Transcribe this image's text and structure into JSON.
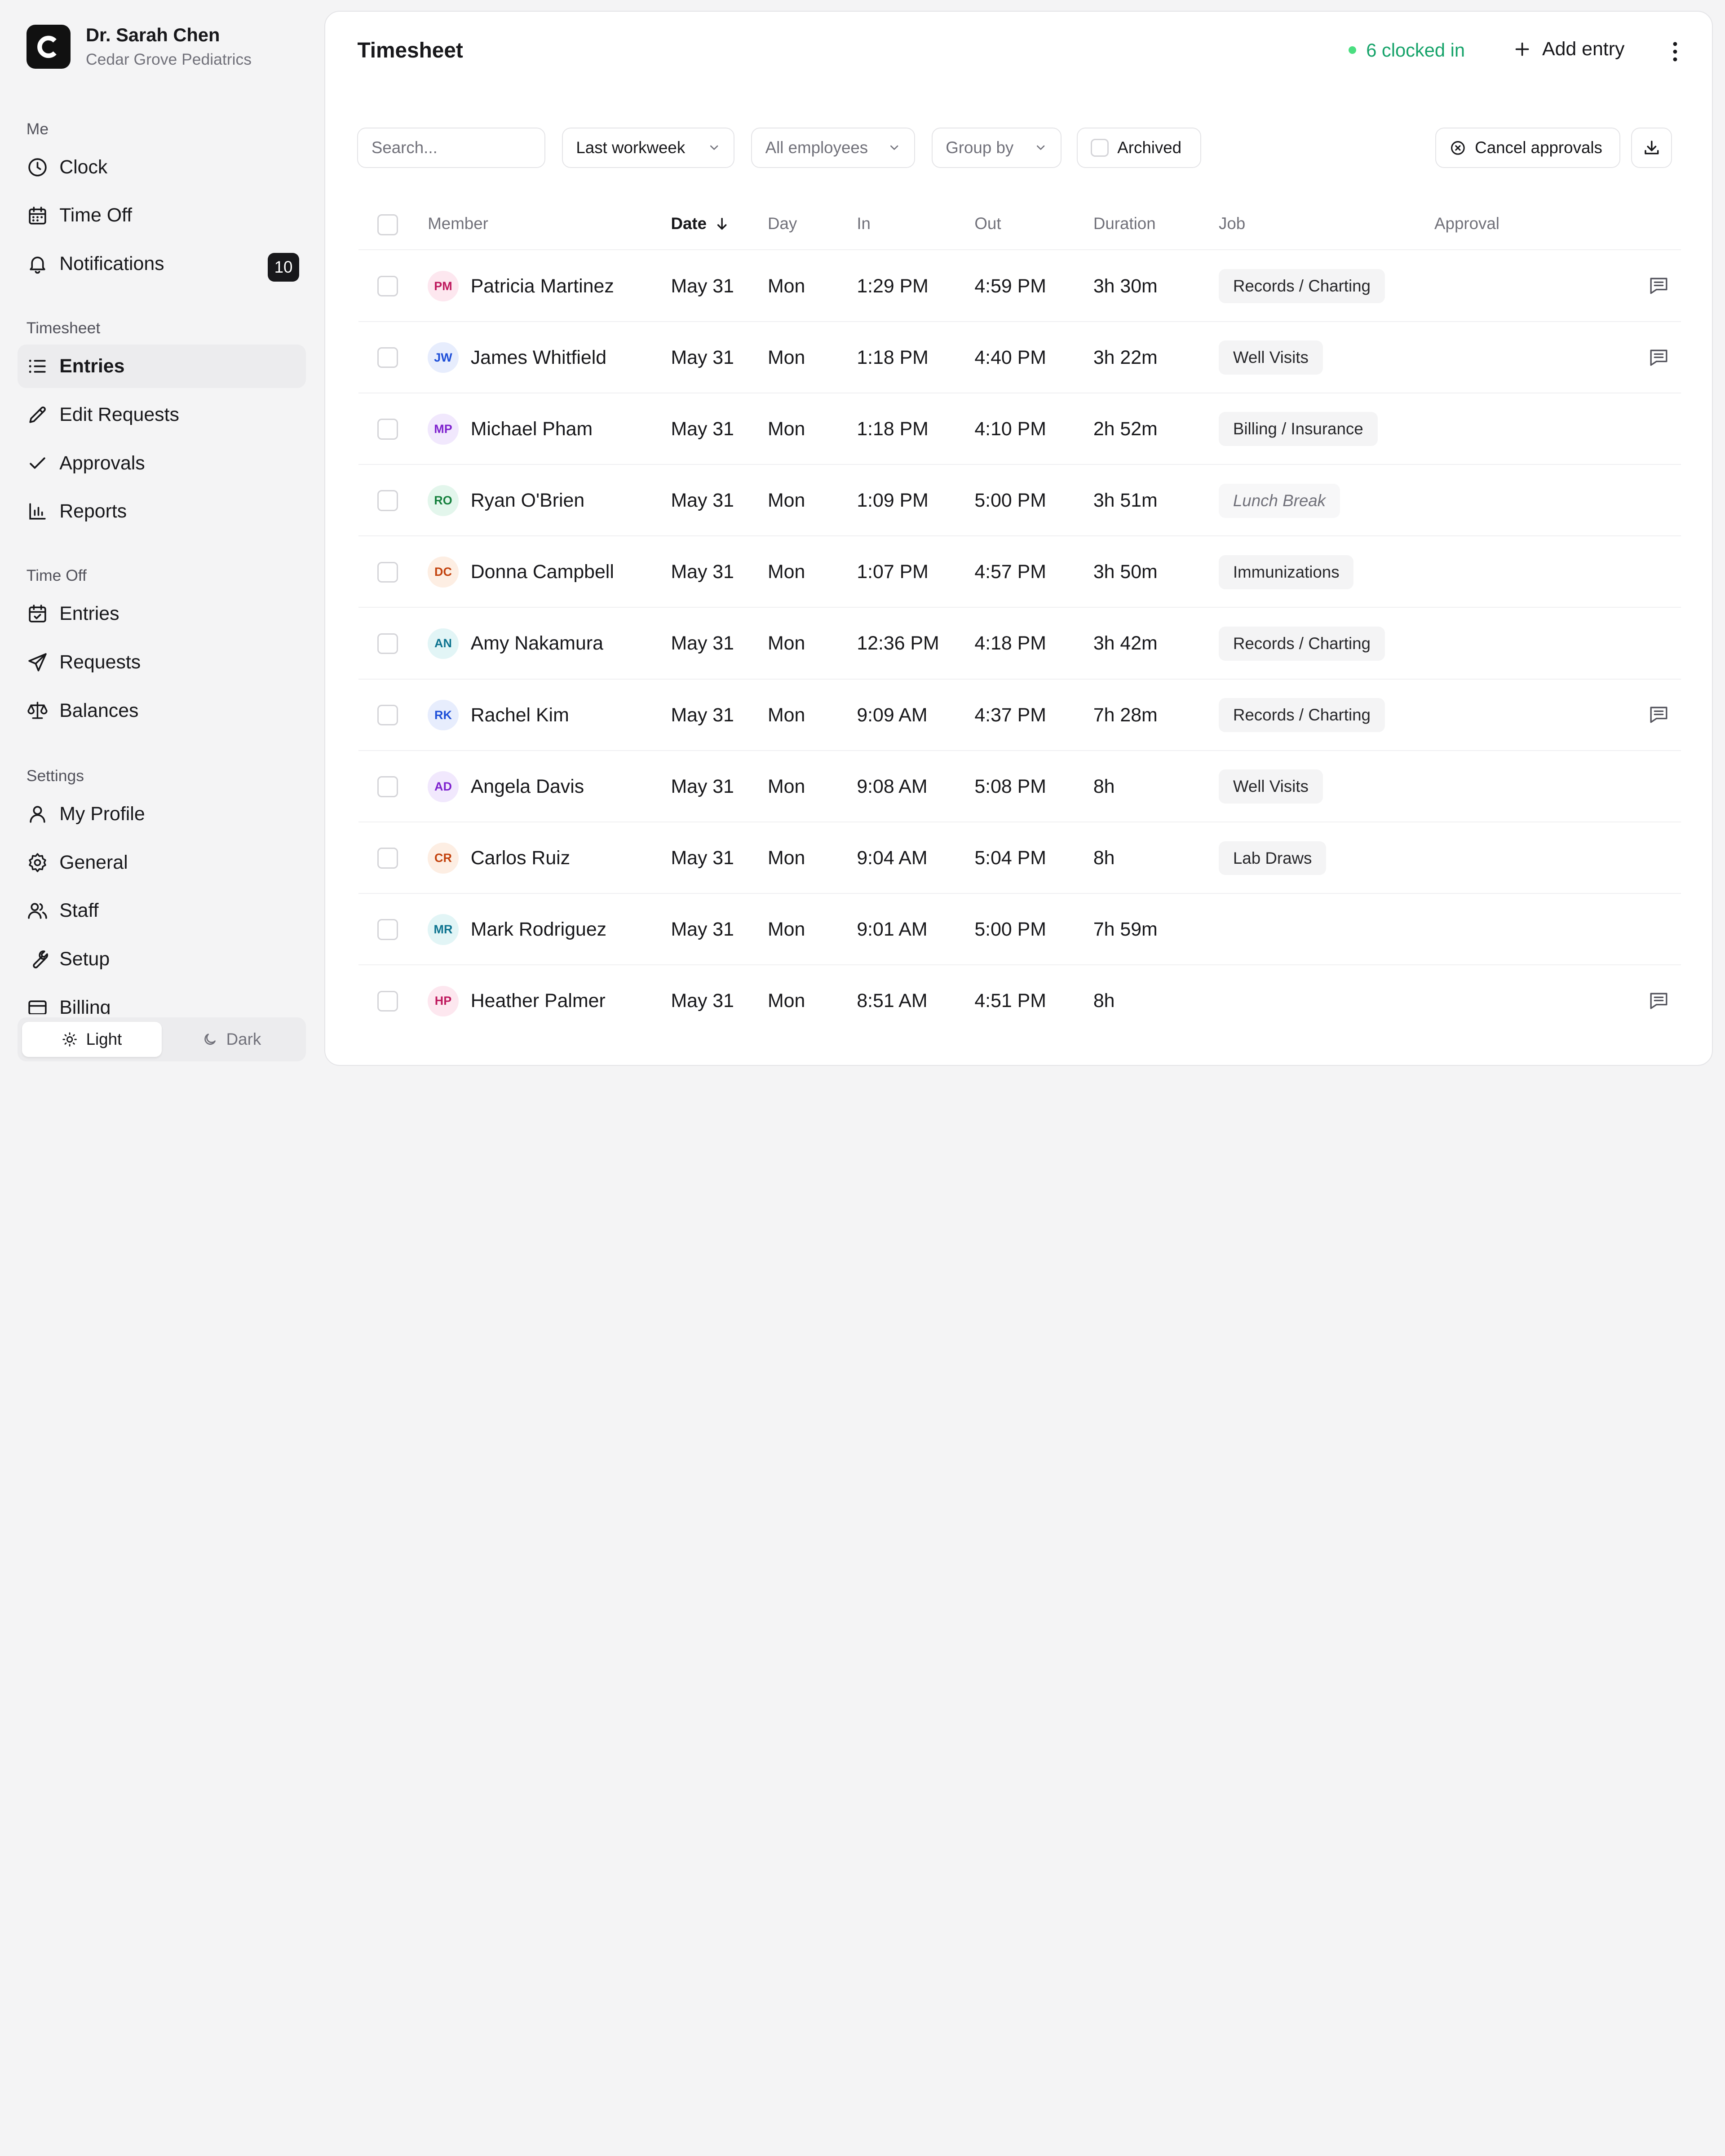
{
  "org": {
    "logo_letter": "C",
    "name": "Dr. Sarah Chen",
    "subtitle": "Cedar Grove Pediatrics"
  },
  "sidebar": {
    "sections": {
      "me": "Me",
      "timesheet": "Timesheet",
      "time_off": "Time Off",
      "settings": "Settings"
    },
    "me_items": [
      {
        "label": "Clock",
        "icon": "clock-icon"
      },
      {
        "label": "Time Off",
        "icon": "calendar-icon"
      },
      {
        "label": "Notifications",
        "icon": "bell-icon",
        "badge": "10"
      }
    ],
    "timesheet_items": [
      {
        "label": "Entries",
        "icon": "list-icon",
        "active": true
      },
      {
        "label": "Edit Requests",
        "icon": "pencil-icon"
      },
      {
        "label": "Approvals",
        "icon": "check-icon"
      },
      {
        "label": "Reports",
        "icon": "bar-chart-icon"
      }
    ],
    "time_off_items": [
      {
        "label": "Entries",
        "icon": "calendar-check-icon"
      },
      {
        "label": "Requests",
        "icon": "send-icon"
      },
      {
        "label": "Balances",
        "icon": "scale-icon"
      }
    ],
    "settings_items": [
      {
        "label": "My Profile",
        "icon": "user-icon"
      },
      {
        "label": "General",
        "icon": "gear-icon"
      },
      {
        "label": "Staff",
        "icon": "users-icon"
      },
      {
        "label": "Setup",
        "icon": "wrench-icon"
      },
      {
        "label": "Billing",
        "icon": "credit-card-icon"
      }
    ],
    "theme": {
      "light": "Light",
      "dark": "Dark",
      "selected": "light"
    }
  },
  "header": {
    "title": "Timesheet",
    "clocked_in": "6 clocked in",
    "add_entry": "Add entry"
  },
  "filters": {
    "search_placeholder": "Search...",
    "period": "Last workweek",
    "employees": "All employees",
    "group_by": "Group by",
    "archived": "Archived",
    "cancel_approvals": "Cancel approvals"
  },
  "table": {
    "columns": {
      "member": "Member",
      "date": "Date",
      "day": "Day",
      "in": "In",
      "out": "Out",
      "duration": "Duration",
      "job": "Job",
      "approval": "Approval"
    },
    "rows": [
      {
        "initials": "PM",
        "name": "Patricia Martinez",
        "date": "May 31",
        "day": "Mon",
        "in": "1:29 PM",
        "out": "4:59 PM",
        "duration": "3h 30m",
        "job": "Records / Charting",
        "note": true,
        "avatar_bg": "#fde7ef",
        "avatar_fg": "#be185d"
      },
      {
        "initials": "JW",
        "name": "James Whitfield",
        "date": "May 31",
        "day": "Mon",
        "in": "1:18 PM",
        "out": "4:40 PM",
        "duration": "3h 22m",
        "job": "Well Visits",
        "note": true,
        "avatar_bg": "#e7edfd",
        "avatar_fg": "#1d4ed8"
      },
      {
        "initials": "MP",
        "name": "Michael Pham",
        "date": "May 31",
        "day": "Mon",
        "in": "1:18 PM",
        "out": "4:10 PM",
        "duration": "2h 52m",
        "job": "Billing / Insurance",
        "note": false,
        "avatar_bg": "#f1e8fd",
        "avatar_fg": "#7e22ce"
      },
      {
        "initials": "RO",
        "name": "Ryan O'Brien",
        "date": "May 31",
        "day": "Mon",
        "in": "1:09 PM",
        "out": "5:00 PM",
        "duration": "3h 51m",
        "job": "Lunch Break",
        "job_italic": true,
        "note": false,
        "avatar_bg": "#e3f6ec",
        "avatar_fg": "#15803d"
      },
      {
        "initials": "DC",
        "name": "Donna Campbell",
        "date": "May 31",
        "day": "Mon",
        "in": "1:07 PM",
        "out": "4:57 PM",
        "duration": "3h 50m",
        "job": "Immunizations",
        "note": false,
        "avatar_bg": "#fdeee3",
        "avatar_fg": "#c2410c"
      },
      {
        "initials": "AN",
        "name": "Amy Nakamura",
        "date": "May 31",
        "day": "Mon",
        "in": "12:36 PM",
        "out": "4:18 PM",
        "duration": "3h 42m",
        "job": "Records / Charting",
        "note": false,
        "avatar_bg": "#e2f5f6",
        "avatar_fg": "#0e7490"
      },
      {
        "initials": "RK",
        "name": "Rachel Kim",
        "date": "May 31",
        "day": "Mon",
        "in": "9:09 AM",
        "out": "4:37 PM",
        "duration": "7h 28m",
        "job": "Records / Charting",
        "note": true,
        "avatar_bg": "#e7edfd",
        "avatar_fg": "#1d4ed8"
      },
      {
        "initials": "AD",
        "name": "Angela Davis",
        "date": "May 31",
        "day": "Mon",
        "in": "9:08 AM",
        "out": "5:08 PM",
        "duration": "8h",
        "job": "Well Visits",
        "note": false,
        "avatar_bg": "#f1e8fd",
        "avatar_fg": "#7e22ce"
      },
      {
        "initials": "CR",
        "name": "Carlos Ruiz",
        "date": "May 31",
        "day": "Mon",
        "in": "9:04 AM",
        "out": "5:04 PM",
        "duration": "8h",
        "job": "Lab Draws",
        "note": false,
        "avatar_bg": "#fdeee3",
        "avatar_fg": "#c2410c"
      },
      {
        "initials": "MR",
        "name": "Mark Rodriguez",
        "date": "May 31",
        "day": "Mon",
        "in": "9:01 AM",
        "out": "5:00 PM",
        "duration": "7h 59m",
        "job": "",
        "note": false,
        "avatar_bg": "#e2f5f6",
        "avatar_fg": "#0e7490"
      },
      {
        "initials": "HP",
        "name": "Heather Palmer",
        "date": "May 31",
        "day": "Mon",
        "in": "8:51 AM",
        "out": "4:51 PM",
        "duration": "8h",
        "job": "",
        "note": true,
        "avatar_bg": "#fde7ef",
        "avatar_fg": "#be185d"
      }
    ]
  },
  "colors": {
    "accent_green": "#16a36a",
    "active_bg": "#ececee",
    "badge_bg": "#18181b"
  }
}
